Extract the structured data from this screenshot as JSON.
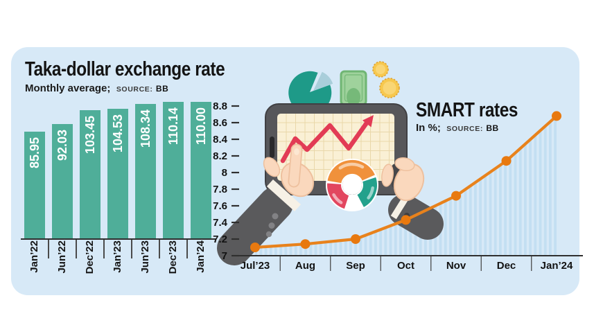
{
  "page": {
    "background": "#FFFFFF",
    "card_background": "#D7E9F7"
  },
  "chart_data": [
    {
      "type": "bar",
      "title": "Taka-dollar exchange rate",
      "subtitle_prefix": "Monthly average;",
      "source_label": "SOURCE:",
      "source_value": "BB",
      "categories": [
        "Jan’22",
        "Jun’22",
        "Dec’22",
        "Jan’23",
        "Jun’23",
        "Dec’23",
        "Jan’24"
      ],
      "values": [
        85.95,
        92.03,
        103.45,
        104.53,
        108.34,
        110.14,
        110.0
      ],
      "value_labels": [
        "85.95",
        "92.03",
        "103.45",
        "104.53",
        "108.34",
        "110.14",
        "110.00"
      ],
      "bar_color": "#4FAE99",
      "value_label_color": "#FFFFFF",
      "axis_color": "#2F2F2F",
      "ylim": [
        0,
        112
      ],
      "grid": false,
      "legend": "none"
    },
    {
      "type": "line",
      "title": "SMART rates",
      "subtitle_prefix": "In %;",
      "source_label": "SOURCE:",
      "source_value": "BB",
      "x": [
        "Jul’23",
        "Aug",
        "Sep",
        "Oct",
        "Nov",
        "Dec",
        "Jan’24"
      ],
      "values": [
        7.1,
        7.14,
        7.2,
        7.43,
        7.72,
        8.14,
        8.68
      ],
      "ytick_values": [
        7,
        7.2,
        7.4,
        7.6,
        7.8,
        8,
        8.2,
        8.4,
        8.6,
        8.8
      ],
      "ytick_labels": [
        "7",
        "7.2",
        "7.4",
        "7.6",
        "7.8",
        "8",
        "8.2",
        "8.4",
        "8.6",
        "8.8"
      ],
      "ylim": [
        7,
        8.8
      ],
      "line_color": "#E8821C",
      "marker_color": "#E8790F",
      "area_style": "striped",
      "stripe_color": "#C3DFF2",
      "axis_color": "#2F2F2F",
      "grid": false,
      "legend": "none"
    }
  ],
  "illustration": {
    "icons": [
      "pie-chart",
      "banknote",
      "coins",
      "tablet-with-rising-trend-arrow",
      "donut-chart",
      "hands-holding-tablet"
    ]
  }
}
